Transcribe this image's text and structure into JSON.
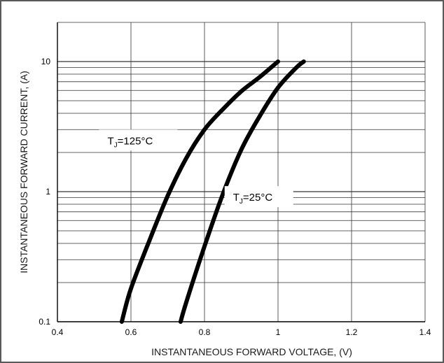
{
  "chart_data": {
    "type": "line",
    "xlabel": "INSTANTANEOUS FORWARD VOLTAGE, (V)",
    "ylabel": "INSTANTANEOUS FORWARD CURRENT, (A)",
    "xlim": [
      0.4,
      1.4
    ],
    "ylim": [
      0.1,
      20
    ],
    "y_scale": "log",
    "grid": true,
    "x_ticks": [
      0.4,
      0.6,
      0.8,
      1,
      1.2,
      1.4
    ],
    "x_tick_labels": [
      "0.4",
      "0.6",
      "0.8",
      "1",
      "1.2",
      "1.4"
    ],
    "y_tick_labels": [
      {
        "value": 0.1,
        "label": "0.1"
      },
      {
        "value": 1,
        "label": "1"
      },
      {
        "value": 10,
        "label": "10"
      }
    ],
    "series": [
      {
        "name": "TJ=125°C",
        "label_main": "T",
        "label_sub": "J",
        "label_rest": "=125°C",
        "label_anchor": {
          "x": 0.54,
          "y": 3.0
        },
        "x": [
          0.575,
          0.6,
          0.65,
          0.7,
          0.75,
          0.8,
          0.85,
          0.9,
          0.95,
          1.0
        ],
        "y": [
          0.1,
          0.18,
          0.42,
          0.93,
          1.8,
          3.0,
          4.3,
          5.9,
          7.6,
          10
        ]
      },
      {
        "name": "TJ=25°C",
        "label_main": "T",
        "label_sub": "J",
        "label_rest": "=25°C",
        "label_anchor": {
          "x": 0.87,
          "y": 0.95
        },
        "x": [
          0.735,
          0.75,
          0.8,
          0.85,
          0.9,
          0.95,
          1.0,
          1.05,
          1.07
        ],
        "y": [
          0.1,
          0.14,
          0.38,
          0.96,
          2.1,
          3.8,
          6.3,
          9.0,
          10
        ]
      }
    ]
  }
}
